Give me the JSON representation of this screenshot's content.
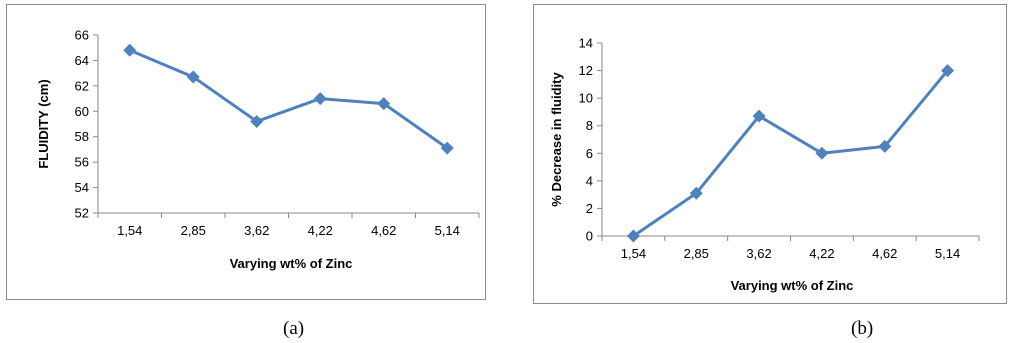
{
  "chart_data": [
    {
      "type": "line",
      "panel_label": "(a)",
      "title": "",
      "xlabel": "Varying wt% of Zinc",
      "ylabel": "FLUIDITY (cm)",
      "categories": [
        "1,54",
        "2,85",
        "3,62",
        "4,22",
        "4,62",
        "5,14"
      ],
      "series": [
        {
          "values": [
            64.8,
            62.7,
            59.2,
            61.0,
            60.6,
            57.1
          ]
        }
      ],
      "ylim": [
        52,
        66
      ],
      "yticks": [
        "52",
        "54",
        "56",
        "58",
        "60",
        "62",
        "64",
        "66"
      ],
      "grid": false,
      "legend": "none",
      "colors": {
        "series": "#4f81bd",
        "axis": "#888888"
      }
    },
    {
      "type": "line",
      "panel_label": "(b)",
      "title": "",
      "xlabel": "Varying wt% of Zinc",
      "ylabel": "% Decrease in fluidity",
      "categories": [
        "1,54",
        "2,85",
        "3,62",
        "4,22",
        "4,62",
        "5,14"
      ],
      "series": [
        {
          "values": [
            0,
            3.1,
            8.7,
            6.0,
            6.5,
            12.0
          ]
        }
      ],
      "ylim": [
        0,
        14
      ],
      "yticks": [
        "0",
        "2",
        "4",
        "6",
        "8",
        "10",
        "12",
        "14"
      ],
      "grid": false,
      "legend": "none",
      "colors": {
        "series": "#4f81bd",
        "axis": "#888888"
      }
    }
  ]
}
